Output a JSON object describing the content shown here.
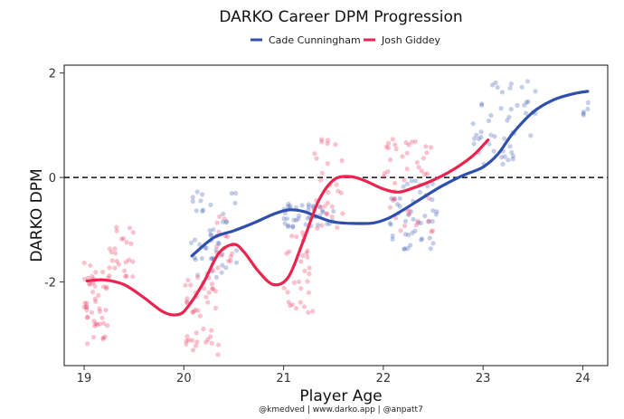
{
  "chart_data": {
    "type": "scatter",
    "title": "DARKO Career DPM Progression",
    "xlabel": "Player Age",
    "ylabel": "DARKO DPM",
    "caption": "@kmedved | www.darko.app | @anpatt7",
    "xlim": [
      18.8,
      24.25
    ],
    "ylim": [
      -3.6,
      2.15
    ],
    "xticks": [
      19,
      20,
      21,
      22,
      23,
      24
    ],
    "yticks": [
      -2,
      0,
      2
    ],
    "reference_line": {
      "y": 0,
      "style": "dashed"
    },
    "legend": {
      "position": "top-center"
    },
    "series": [
      {
        "name": "Cade Cunningham",
        "color": "#2e4fac",
        "trend": [
          [
            20.08,
            -1.5
          ],
          [
            20.3,
            -1.15
          ],
          [
            20.5,
            -1.02
          ],
          [
            20.7,
            -0.87
          ],
          [
            20.9,
            -0.7
          ],
          [
            21.05,
            -0.62
          ],
          [
            21.2,
            -0.65
          ],
          [
            21.35,
            -0.76
          ],
          [
            21.5,
            -0.85
          ],
          [
            21.7,
            -0.88
          ],
          [
            21.9,
            -0.87
          ],
          [
            22.05,
            -0.78
          ],
          [
            22.2,
            -0.62
          ],
          [
            22.4,
            -0.38
          ],
          [
            22.6,
            -0.15
          ],
          [
            22.8,
            0.04
          ],
          [
            23.0,
            0.2
          ],
          [
            23.15,
            0.45
          ],
          [
            23.3,
            0.85
          ],
          [
            23.5,
            1.25
          ],
          [
            23.7,
            1.48
          ],
          [
            23.9,
            1.6
          ],
          [
            24.05,
            1.65
          ]
        ],
        "clusters": [
          {
            "x": [
              20.05,
              20.55
            ],
            "y": [
              -1.95,
              -0.25
            ],
            "n": 45
          },
          {
            "x": [
              21.0,
              21.55
            ],
            "y": [
              -0.95,
              -0.5
            ],
            "n": 40
          },
          {
            "x": [
              22.05,
              22.55
            ],
            "y": [
              -1.4,
              -0.05
            ],
            "n": 45
          },
          {
            "x": [
              22.9,
              23.55
            ],
            "y": [
              0.25,
              1.85
            ],
            "n": 50
          },
          {
            "x": [
              24.0,
              24.1
            ],
            "y": [
              1.15,
              1.45
            ],
            "n": 5
          }
        ]
      },
      {
        "name": "Josh Giddey",
        "color": "#e8244f",
        "trend": [
          [
            19.03,
            -1.98
          ],
          [
            19.2,
            -1.96
          ],
          [
            19.4,
            -2.05
          ],
          [
            19.6,
            -2.3
          ],
          [
            19.8,
            -2.58
          ],
          [
            19.95,
            -2.62
          ],
          [
            20.05,
            -2.45
          ],
          [
            20.2,
            -2.0
          ],
          [
            20.35,
            -1.45
          ],
          [
            20.5,
            -1.28
          ],
          [
            20.6,
            -1.42
          ],
          [
            20.75,
            -1.8
          ],
          [
            20.9,
            -2.05
          ],
          [
            21.05,
            -1.9
          ],
          [
            21.2,
            -1.2
          ],
          [
            21.35,
            -0.45
          ],
          [
            21.5,
            -0.05
          ],
          [
            21.65,
            0.02
          ],
          [
            21.8,
            -0.05
          ],
          [
            22.0,
            -0.22
          ],
          [
            22.15,
            -0.28
          ],
          [
            22.3,
            -0.2
          ],
          [
            22.5,
            -0.05
          ],
          [
            22.7,
            0.15
          ],
          [
            22.9,
            0.42
          ],
          [
            23.05,
            0.72
          ]
        ],
        "clusters": [
          {
            "x": [
              19.0,
              19.25
            ],
            "y": [
              -3.2,
              -1.6
            ],
            "n": 45
          },
          {
            "x": [
              19.25,
              19.5
            ],
            "y": [
              -1.9,
              -0.95
            ],
            "n": 25
          },
          {
            "x": [
              20.0,
              20.35
            ],
            "y": [
              -3.4,
              -1.7
            ],
            "n": 45
          },
          {
            "x": [
              20.3,
              20.55
            ],
            "y": [
              -1.6,
              -0.7
            ],
            "n": 15
          },
          {
            "x": [
              21.0,
              21.3
            ],
            "y": [
              -2.7,
              -1.0
            ],
            "n": 30
          },
          {
            "x": [
              21.3,
              21.6
            ],
            "y": [
              -1.0,
              0.75
            ],
            "n": 30
          },
          {
            "x": [
              22.0,
              22.5
            ],
            "y": [
              -1.05,
              0.8
            ],
            "n": 45
          }
        ]
      }
    ]
  }
}
